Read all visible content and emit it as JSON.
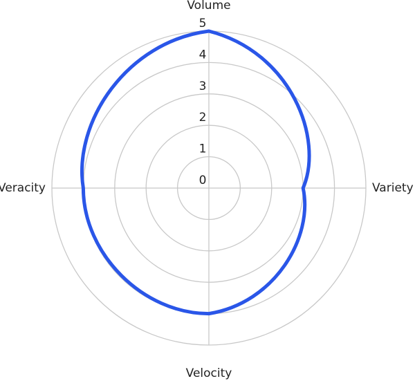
{
  "chart_data": {
    "type": "radar",
    "categories": [
      "Volume",
      "Variety",
      "Velocity",
      "Veracity"
    ],
    "values": [
      5,
      3,
      4,
      4
    ],
    "color": "#2a56e8",
    "rlim": [
      0,
      5
    ],
    "rticks": [
      0,
      1,
      2,
      3,
      4,
      5
    ],
    "grid": true
  }
}
